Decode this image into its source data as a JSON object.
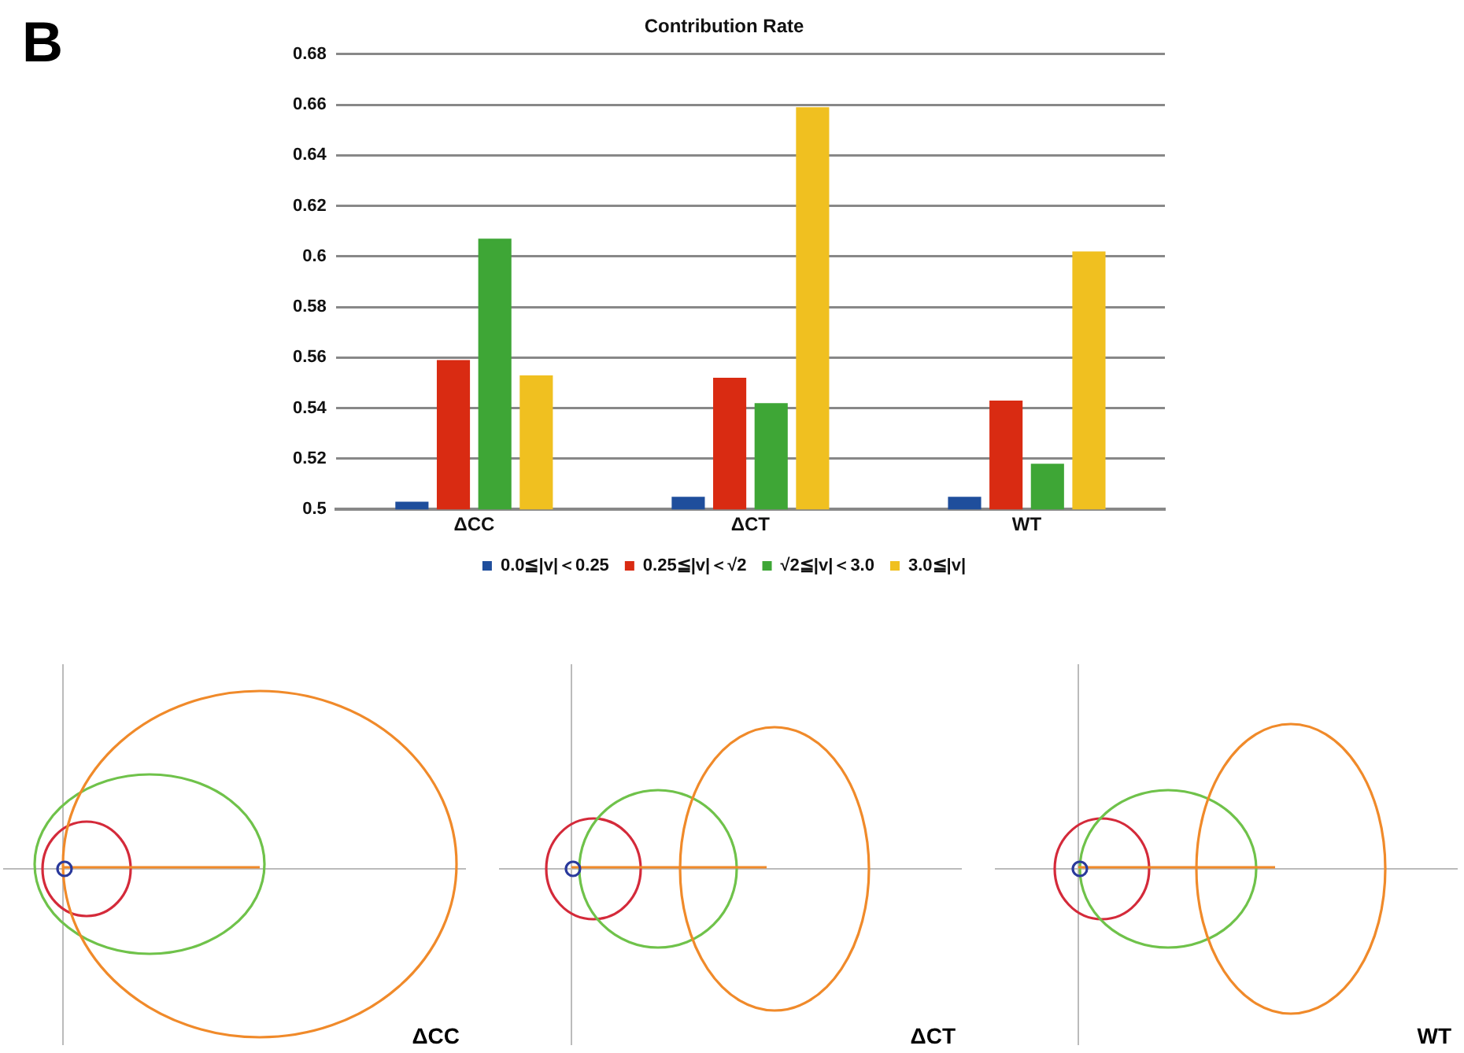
{
  "chart_data": [
    {
      "type": "bar",
      "title": "Contribution Rate",
      "categories": [
        "ΔCC",
        "ΔCT",
        "WT"
      ],
      "series": [
        {
          "name": "0.0≦|v|＜0.25",
          "color": "#1f4e9c",
          "values": [
            0.503,
            0.505,
            0.505
          ]
        },
        {
          "name": "0.25≦|v|＜√2",
          "color": "#d92b12",
          "values": [
            0.559,
            0.552,
            0.543
          ]
        },
        {
          "name": "√2≦|v|＜3.0",
          "color": "#3ea636",
          "values": [
            0.607,
            0.542,
            0.518
          ]
        },
        {
          "name": "3.0≦|v|",
          "color": "#f0c020",
          "values": [
            0.553,
            0.659,
            0.602
          ]
        }
      ],
      "ylim": [
        0.5,
        0.68
      ],
      "yticks": [
        0.5,
        0.52,
        0.54,
        0.56,
        0.58,
        0.6,
        0.62,
        0.64,
        0.66,
        0.68
      ],
      "grid": "y",
      "legend": "bottom",
      "annotations": [
        "B"
      ]
    },
    {
      "type": "other",
      "title": "ΔCC"
    },
    {
      "type": "other",
      "title": "ΔCT"
    },
    {
      "type": "other",
      "title": "WT"
    }
  ]
}
